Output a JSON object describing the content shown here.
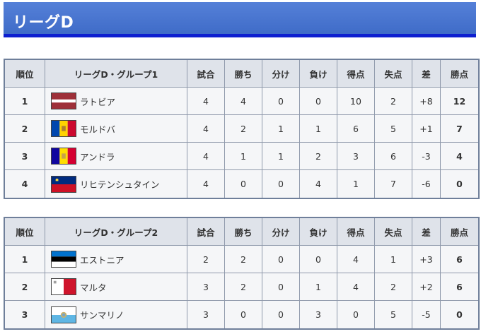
{
  "page": {
    "title": "リーグD"
  },
  "columns": [
    "順位",
    "試合",
    "勝ち",
    "分け",
    "負け",
    "得点",
    "失点",
    "差",
    "勝点"
  ],
  "groups": [
    {
      "title": "リーグD・グループ1",
      "rows": [
        {
          "rank": "1",
          "flag": "latvia-flag-icon",
          "team": "ラトビア",
          "played": "4",
          "won": "4",
          "drawn": "0",
          "lost": "0",
          "gf": "10",
          "ga": "2",
          "gd": "+8",
          "pts": "12"
        },
        {
          "rank": "2",
          "flag": "moldova-flag-icon",
          "team": "モルドバ",
          "played": "4",
          "won": "2",
          "drawn": "1",
          "lost": "1",
          "gf": "6",
          "ga": "5",
          "gd": "+1",
          "pts": "7"
        },
        {
          "rank": "3",
          "flag": "andorra-flag-icon",
          "team": "アンドラ",
          "played": "4",
          "won": "1",
          "drawn": "1",
          "lost": "2",
          "gf": "3",
          "ga": "6",
          "gd": "-3",
          "pts": "4"
        },
        {
          "rank": "4",
          "flag": "liechtenstein-flag-icon",
          "team": "リヒテンシュタイン",
          "played": "4",
          "won": "0",
          "drawn": "0",
          "lost": "4",
          "gf": "1",
          "ga": "7",
          "gd": "-6",
          "pts": "0"
        }
      ]
    },
    {
      "title": "リーグD・グループ2",
      "rows": [
        {
          "rank": "1",
          "flag": "estonia-flag-icon",
          "team": "エストニア",
          "played": "2",
          "won": "2",
          "drawn": "0",
          "lost": "0",
          "gf": "4",
          "ga": "1",
          "gd": "+3",
          "pts": "6"
        },
        {
          "rank": "2",
          "flag": "malta-flag-icon",
          "team": "マルタ",
          "played": "3",
          "won": "2",
          "drawn": "0",
          "lost": "1",
          "gf": "4",
          "ga": "2",
          "gd": "+2",
          "pts": "6"
        },
        {
          "rank": "3",
          "flag": "san-marino-flag-icon",
          "team": "サンマリノ",
          "played": "3",
          "won": "0",
          "drawn": "0",
          "lost": "3",
          "gf": "0",
          "ga": "5",
          "gd": "-5",
          "pts": "0"
        }
      ]
    }
  ],
  "colors": {
    "header_bg": "#4a77d2",
    "header_underline": "#0d1fd0",
    "table_border": "#6f7f9a",
    "th_bg": "#dfe3ea",
    "td_bg": "#f5f6f8"
  }
}
